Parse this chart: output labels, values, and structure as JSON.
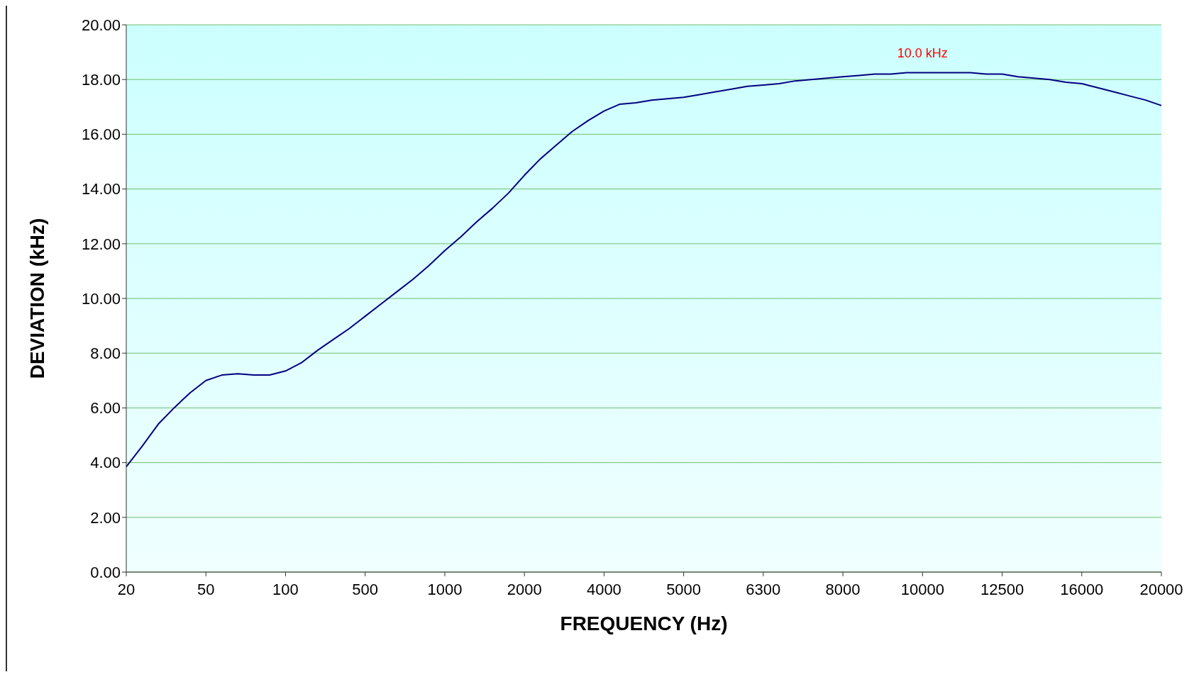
{
  "chart_data": {
    "type": "line",
    "xlabel": "FREQUENCY (Hz)",
    "ylabel": "DEVIATION (kHz)",
    "categories": [
      "20",
      null,
      null,
      null,
      null,
      "50",
      null,
      null,
      null,
      null,
      "100",
      null,
      null,
      null,
      null,
      "500",
      null,
      null,
      null,
      null,
      "1000",
      null,
      null,
      null,
      null,
      "2000",
      null,
      null,
      null,
      null,
      "4000",
      null,
      null,
      null,
      null,
      "5000",
      null,
      null,
      null,
      null,
      "6300",
      null,
      null,
      null,
      null,
      "8000",
      null,
      null,
      null,
      null,
      "10000",
      null,
      null,
      null,
      null,
      "12500",
      null,
      null,
      null,
      null,
      "16000",
      null,
      null,
      null,
      null,
      "20000"
    ],
    "series": [
      {
        "color": "#000080",
        "values": [
          3.85,
          4.6,
          5.4,
          6.0,
          6.55,
          7.0,
          7.2,
          7.25,
          7.2,
          7.2,
          7.35,
          7.65,
          8.1,
          8.5,
          8.9,
          9.35,
          9.8,
          10.25,
          10.7,
          11.2,
          11.75,
          12.25,
          12.8,
          13.3,
          13.85,
          14.5,
          15.1,
          15.6,
          16.1,
          16.5,
          16.85,
          17.1,
          17.15,
          17.25,
          17.3,
          17.35,
          17.45,
          17.55,
          17.65,
          17.75,
          17.8,
          17.85,
          17.95,
          18.0,
          18.05,
          18.1,
          18.15,
          18.2,
          18.2,
          18.25,
          18.25,
          18.25,
          18.25,
          18.25,
          18.2,
          18.2,
          18.1,
          18.05,
          18.0,
          17.9,
          17.85,
          17.7,
          17.55,
          17.4,
          17.25,
          17.05
        ]
      }
    ],
    "ylim": [
      0,
      20
    ],
    "yticks": [
      {
        "value": 0,
        "label": "0.00"
      },
      {
        "value": 2,
        "label": "2.00"
      },
      {
        "value": 4,
        "label": "4.00"
      },
      {
        "value": 6,
        "label": "6.00"
      },
      {
        "value": 8,
        "label": "8.00"
      },
      {
        "value": 10,
        "label": "10.00"
      },
      {
        "value": 12,
        "label": "12.00"
      },
      {
        "value": 14,
        "label": "14.00"
      },
      {
        "value": 16,
        "label": "16.00"
      },
      {
        "value": 18,
        "label": "18.00"
      },
      {
        "value": 20,
        "label": "20.00"
      }
    ],
    "grid": "y",
    "legend": false,
    "marker": "none",
    "line_style": "solid",
    "annotations": [
      {
        "text": "10.0 kHz",
        "x": "10000",
        "y": 18.25
      }
    ]
  }
}
